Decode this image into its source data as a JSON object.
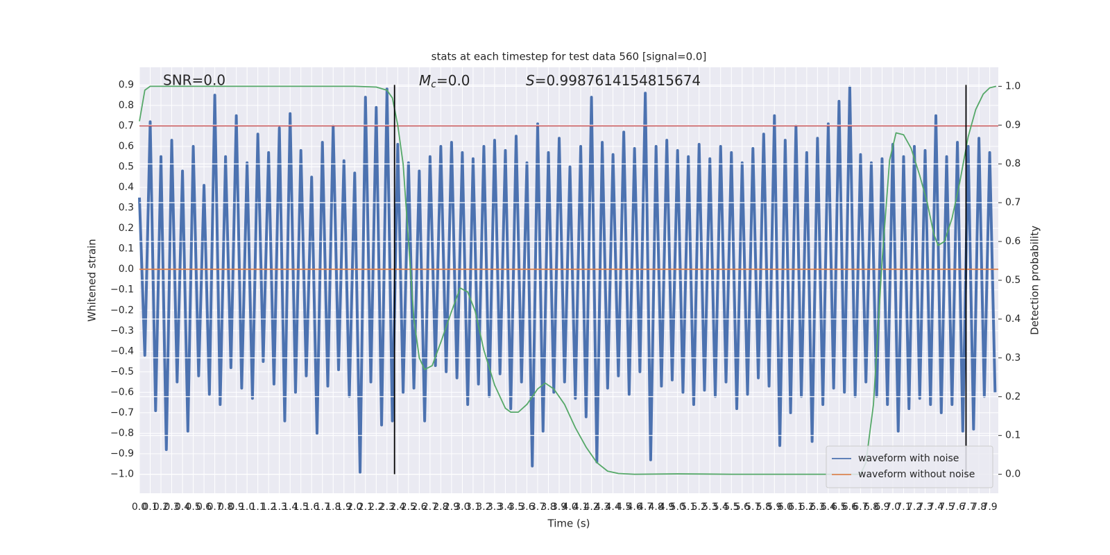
{
  "chart_data": {
    "type": "line",
    "title": "stats at each timestep for test data 560 [signal=0.0]",
    "x_label": "Time (s)",
    "y_label": "Whitened strain",
    "y2_label": "Detection probability",
    "annotations": [
      "SNR=0.0",
      {
        "symbol": "M",
        "sub": "c",
        "rest": "=0.0"
      },
      {
        "symbol": "S",
        "rest": "=0.9987614154815674"
      }
    ],
    "grid": true,
    "legend": "lower right",
    "background": "#eaeaf2",
    "xlim": [
      0,
      7.98
    ],
    "ylim": [
      -1.093,
      0.986
    ],
    "y2lim": [
      -0.049,
      1.049
    ],
    "xticks": [
      {
        "value": 0.0,
        "label": "0.0"
      },
      {
        "value": 0.1,
        "label": "0.1"
      },
      {
        "value": 0.2,
        "label": "0.2"
      },
      {
        "value": 0.3,
        "label": "0.3"
      },
      {
        "value": 0.4,
        "label": "0.4"
      },
      {
        "value": 0.5,
        "label": "0.5"
      },
      {
        "value": 0.6,
        "label": "0.6"
      },
      {
        "value": 0.7,
        "label": "0.7"
      },
      {
        "value": 0.8,
        "label": "0.8"
      },
      {
        "value": 0.9,
        "label": "0.9"
      },
      {
        "value": 1.0,
        "label": "1.0"
      },
      {
        "value": 1.1,
        "label": "1.1"
      },
      {
        "value": 1.2,
        "label": "1.2"
      },
      {
        "value": 1.3,
        "label": "1.3"
      },
      {
        "value": 1.4,
        "label": "1.4"
      },
      {
        "value": 1.5,
        "label": "1.5"
      },
      {
        "value": 1.6,
        "label": "1.6"
      },
      {
        "value": 1.7,
        "label": "1.7"
      },
      {
        "value": 1.8,
        "label": "1.8"
      },
      {
        "value": 1.9,
        "label": "1.9"
      },
      {
        "value": 2.0,
        "label": "2.0"
      },
      {
        "value": 2.1,
        "label": "2.1"
      },
      {
        "value": 2.2,
        "label": "2.2"
      },
      {
        "value": 2.3,
        "label": "2.3"
      },
      {
        "value": 2.4,
        "label": "2.4"
      },
      {
        "value": 2.5,
        "label": "2.5"
      },
      {
        "value": 2.6,
        "label": "2.6"
      },
      {
        "value": 2.7,
        "label": "2.7"
      },
      {
        "value": 2.8,
        "label": "2.8"
      },
      {
        "value": 2.9,
        "label": "2.9"
      },
      {
        "value": 3.0,
        "label": "3.0"
      },
      {
        "value": 3.1,
        "label": "3.1"
      },
      {
        "value": 3.2,
        "label": "3.2"
      },
      {
        "value": 3.3,
        "label": "3.3"
      },
      {
        "value": 3.4,
        "label": "3.4"
      },
      {
        "value": 3.5,
        "label": "3.5"
      },
      {
        "value": 3.6,
        "label": "3.6"
      },
      {
        "value": 3.7,
        "label": "3.7"
      },
      {
        "value": 3.8,
        "label": "3.8"
      },
      {
        "value": 3.9,
        "label": "3.9"
      },
      {
        "value": 4.0,
        "label": "4.0"
      },
      {
        "value": 4.1,
        "label": "4.1"
      },
      {
        "value": 4.2,
        "label": "4.2"
      },
      {
        "value": 4.3,
        "label": "4.3"
      },
      {
        "value": 4.4,
        "label": "4.4"
      },
      {
        "value": 4.5,
        "label": "4.5"
      },
      {
        "value": 4.6,
        "label": "4.6"
      },
      {
        "value": 4.7,
        "label": "4.7"
      },
      {
        "value": 4.8,
        "label": "4.8"
      },
      {
        "value": 4.9,
        "label": "4.9"
      },
      {
        "value": 5.0,
        "label": "5.0"
      },
      {
        "value": 5.1,
        "label": "5.1"
      },
      {
        "value": 5.2,
        "label": "5.2"
      },
      {
        "value": 5.3,
        "label": "5.3"
      },
      {
        "value": 5.4,
        "label": "5.4"
      },
      {
        "value": 5.5,
        "label": "5.5"
      },
      {
        "value": 5.6,
        "label": "5.6"
      },
      {
        "value": 5.7,
        "label": "5.7"
      },
      {
        "value": 5.8,
        "label": "5.8"
      },
      {
        "value": 5.9,
        "label": "5.9"
      },
      {
        "value": 6.0,
        "label": "6.0"
      },
      {
        "value": 6.1,
        "label": "6.1"
      },
      {
        "value": 6.2,
        "label": "6.2"
      },
      {
        "value": 6.3,
        "label": "6.3"
      },
      {
        "value": 6.4,
        "label": "6.4"
      },
      {
        "value": 6.5,
        "label": "6.5"
      },
      {
        "value": 6.6,
        "label": "6.6"
      },
      {
        "value": 6.7,
        "label": "6.7"
      },
      {
        "value": 6.8,
        "label": "6.8"
      },
      {
        "value": 6.9,
        "label": "6.9"
      },
      {
        "value": 7.0,
        "label": "7.0"
      },
      {
        "value": 7.1,
        "label": "7.1"
      },
      {
        "value": 7.2,
        "label": "7.2"
      },
      {
        "value": 7.3,
        "label": "7.3"
      },
      {
        "value": 7.4,
        "label": "7.4"
      },
      {
        "value": 7.5,
        "label": "7.5"
      },
      {
        "value": 7.6,
        "label": "7.6"
      },
      {
        "value": 7.7,
        "label": "7.7"
      },
      {
        "value": 7.8,
        "label": "7.8"
      },
      {
        "value": 7.9,
        "label": "7.9"
      }
    ],
    "yticks": [
      {
        "value": -1.0,
        "label": "−1.0"
      },
      {
        "value": -0.9,
        "label": "−0.9"
      },
      {
        "value": -0.8,
        "label": "−0.8"
      },
      {
        "value": -0.7,
        "label": "−0.7"
      },
      {
        "value": -0.6,
        "label": "−0.6"
      },
      {
        "value": -0.5,
        "label": "−0.5"
      },
      {
        "value": -0.4,
        "label": "−0.4"
      },
      {
        "value": -0.3,
        "label": "−0.3"
      },
      {
        "value": -0.2,
        "label": "−0.2"
      },
      {
        "value": -0.1,
        "label": "−0.1"
      },
      {
        "value": 0,
        "label": "0.0"
      },
      {
        "value": 0.1,
        "label": "0.1"
      },
      {
        "value": 0.2,
        "label": "0.2"
      },
      {
        "value": 0.3,
        "label": "0.3"
      },
      {
        "value": 0.4,
        "label": "0.4"
      },
      {
        "value": 0.5,
        "label": "0.5"
      },
      {
        "value": 0.6,
        "label": "0.6"
      },
      {
        "value": 0.7,
        "label": "0.7"
      },
      {
        "value": 0.8,
        "label": "0.8"
      },
      {
        "value": 0.9,
        "label": "0.9"
      }
    ],
    "y2ticks": [
      {
        "value": 0,
        "label": "0.0"
      },
      {
        "value": 0.1,
        "label": "0.1"
      },
      {
        "value": 0.2,
        "label": "0.2"
      },
      {
        "value": 0.3,
        "label": "0.3"
      },
      {
        "value": 0.4,
        "label": "0.4"
      },
      {
        "value": 0.5,
        "label": "0.5"
      },
      {
        "value": 0.6,
        "label": "0.6"
      },
      {
        "value": 0.7,
        "label": "0.7"
      },
      {
        "value": 0.8,
        "label": "0.8"
      },
      {
        "value": 0.9,
        "label": "0.9"
      },
      {
        "value": 1,
        "label": "1.0"
      }
    ],
    "series": [
      {
        "name": "waveform with noise",
        "color": "#4c72b0",
        "x": [
          0.0,
          0.05,
          0.1,
          0.15,
          0.2,
          0.25,
          0.3,
          0.35,
          0.4,
          0.45,
          0.5,
          0.55,
          0.6,
          0.65,
          0.7,
          0.75,
          0.8,
          0.85,
          0.9,
          0.95,
          1.0,
          1.05,
          1.1,
          1.15,
          1.2,
          1.25,
          1.3,
          1.35,
          1.4,
          1.45,
          1.5,
          1.55,
          1.6,
          1.65,
          1.7,
          1.75,
          1.8,
          1.85,
          1.9,
          1.95,
          2.0,
          2.05,
          2.1,
          2.15,
          2.2,
          2.25,
          2.3,
          2.35,
          2.4,
          2.45,
          2.5,
          2.55,
          2.6,
          2.65,
          2.7,
          2.75,
          2.8,
          2.85,
          2.9,
          2.95,
          3.0,
          3.05,
          3.1,
          3.15,
          3.2,
          3.25,
          3.3,
          3.35,
          3.4,
          3.45,
          3.5,
          3.55,
          3.6,
          3.65,
          3.7,
          3.75,
          3.8,
          3.85,
          3.9,
          3.95,
          4.0,
          4.05,
          4.1,
          4.15,
          4.2,
          4.25,
          4.3,
          4.35,
          4.4,
          4.45,
          4.5,
          4.55,
          4.6,
          4.65,
          4.7,
          4.75,
          4.8,
          4.85,
          4.9,
          4.95,
          5.0,
          5.05,
          5.1,
          5.15,
          5.2,
          5.25,
          5.3,
          5.35,
          5.4,
          5.45,
          5.5,
          5.55,
          5.6,
          5.65,
          5.7,
          5.75,
          5.8,
          5.85,
          5.9,
          5.95,
          6.0,
          6.05,
          6.1,
          6.15,
          6.2,
          6.25,
          6.3,
          6.35,
          6.4,
          6.45,
          6.5,
          6.55,
          6.6,
          6.65,
          6.7,
          6.75,
          6.8,
          6.85,
          6.9,
          6.95,
          7.0,
          7.05,
          7.1,
          7.15,
          7.2,
          7.25,
          7.3,
          7.35,
          7.4,
          7.45,
          7.5,
          7.55,
          7.6,
          7.65,
          7.7,
          7.75,
          7.8,
          7.85,
          7.9,
          7.95
        ],
        "values": [
          0.35,
          -0.42,
          0.72,
          -0.69,
          0.55,
          -0.88,
          0.63,
          -0.55,
          0.48,
          -0.79,
          0.6,
          -0.52,
          0.41,
          -0.61,
          0.85,
          -0.66,
          0.55,
          -0.48,
          0.75,
          -0.58,
          0.52,
          -0.63,
          0.66,
          -0.45,
          0.57,
          -0.56,
          0.69,
          -0.74,
          0.76,
          -0.6,
          0.58,
          -0.52,
          0.45,
          -0.8,
          0.62,
          -0.57,
          0.7,
          -0.49,
          0.53,
          -0.62,
          0.47,
          -0.99,
          0.84,
          -0.55,
          0.79,
          -0.76,
          0.88,
          -0.74,
          0.61,
          -0.6,
          0.52,
          -0.58,
          0.48,
          -0.74,
          0.55,
          -0.47,
          0.6,
          -0.5,
          0.62,
          -0.53,
          0.57,
          -0.66,
          0.54,
          -0.56,
          0.6,
          -0.62,
          0.63,
          -0.51,
          0.58,
          -0.68,
          0.65,
          -0.55,
          0.52,
          -0.96,
          0.71,
          -0.79,
          0.57,
          -0.6,
          0.64,
          -0.55,
          0.5,
          -0.63,
          0.6,
          -0.72,
          0.84,
          -0.94,
          0.62,
          -0.58,
          0.56,
          -0.52,
          0.67,
          -0.61,
          0.59,
          -0.5,
          0.86,
          -0.93,
          0.6,
          -0.57,
          0.63,
          -0.54,
          0.58,
          -0.6,
          0.55,
          -0.66,
          0.61,
          -0.59,
          0.54,
          -0.62,
          0.6,
          -0.55,
          0.57,
          -0.68,
          0.52,
          -0.61,
          0.59,
          -0.53,
          0.66,
          -0.57,
          0.75,
          -0.86,
          0.63,
          -0.7,
          0.7,
          -0.62,
          0.57,
          -0.84,
          0.64,
          -0.66,
          0.71,
          -0.58,
          0.82,
          -0.6,
          0.89,
          -0.62,
          0.56,
          -0.55,
          0.52,
          -0.62,
          0.54,
          -0.66,
          0.61,
          -0.79,
          0.55,
          -0.68,
          0.6,
          -0.63,
          0.58,
          -0.66,
          0.75,
          -0.7,
          0.55,
          -0.66,
          0.62,
          -0.79,
          0.6,
          -0.78,
          0.64,
          -0.62,
          0.57,
          -0.6
        ]
      },
      {
        "name": "waveform without noise",
        "color": "#dd8452",
        "x": [
          0,
          7.98
        ],
        "values": [
          0,
          0
        ]
      },
      {
        "color": "#55a868",
        "axis": "y2",
        "x": [
          0.0,
          0.05,
          0.1,
          0.2,
          0.5,
          1.0,
          1.5,
          2.0,
          2.2,
          2.3,
          2.35,
          2.4,
          2.45,
          2.5,
          2.55,
          2.6,
          2.65,
          2.72,
          2.8,
          2.9,
          2.98,
          3.05,
          3.12,
          3.2,
          3.3,
          3.4,
          3.45,
          3.52,
          3.6,
          3.7,
          3.77,
          3.85,
          3.95,
          4.05,
          4.15,
          4.25,
          4.35,
          4.45,
          4.6,
          5.0,
          5.5,
          6.0,
          6.5,
          6.7,
          6.75,
          6.82,
          6.9,
          6.97,
          7.03,
          7.1,
          7.17,
          7.25,
          7.32,
          7.38,
          7.42,
          7.48,
          7.55,
          7.62,
          7.7,
          7.77,
          7.84,
          7.9,
          7.96
        ],
        "values": [
          0.91,
          0.99,
          1.0,
          1.0,
          1.0,
          1.0,
          1.0,
          1.0,
          0.998,
          0.99,
          0.97,
          0.9,
          0.8,
          0.6,
          0.4,
          0.3,
          0.27,
          0.28,
          0.34,
          0.42,
          0.48,
          0.47,
          0.42,
          0.32,
          0.23,
          0.17,
          0.16,
          0.16,
          0.18,
          0.22,
          0.235,
          0.22,
          0.18,
          0.12,
          0.07,
          0.03,
          0.008,
          0.002,
          0.0,
          0.001,
          0.0,
          0.0,
          0.0,
          0.0,
          0.03,
          0.18,
          0.55,
          0.81,
          0.88,
          0.875,
          0.84,
          0.77,
          0.7,
          0.62,
          0.59,
          0.6,
          0.66,
          0.75,
          0.87,
          0.94,
          0.98,
          0.996,
          1.0
        ]
      }
    ],
    "hlines": [
      {
        "y": 0.7,
        "color": "#c44e52"
      }
    ],
    "vlines": [
      {
        "x": 2.37,
        "ymin": -1.0,
        "ymax": 0.9,
        "color": "#000000"
      },
      {
        "x": 7.68,
        "ymin": -1.0,
        "ymax": 0.9,
        "color": "#000000"
      }
    ]
  }
}
